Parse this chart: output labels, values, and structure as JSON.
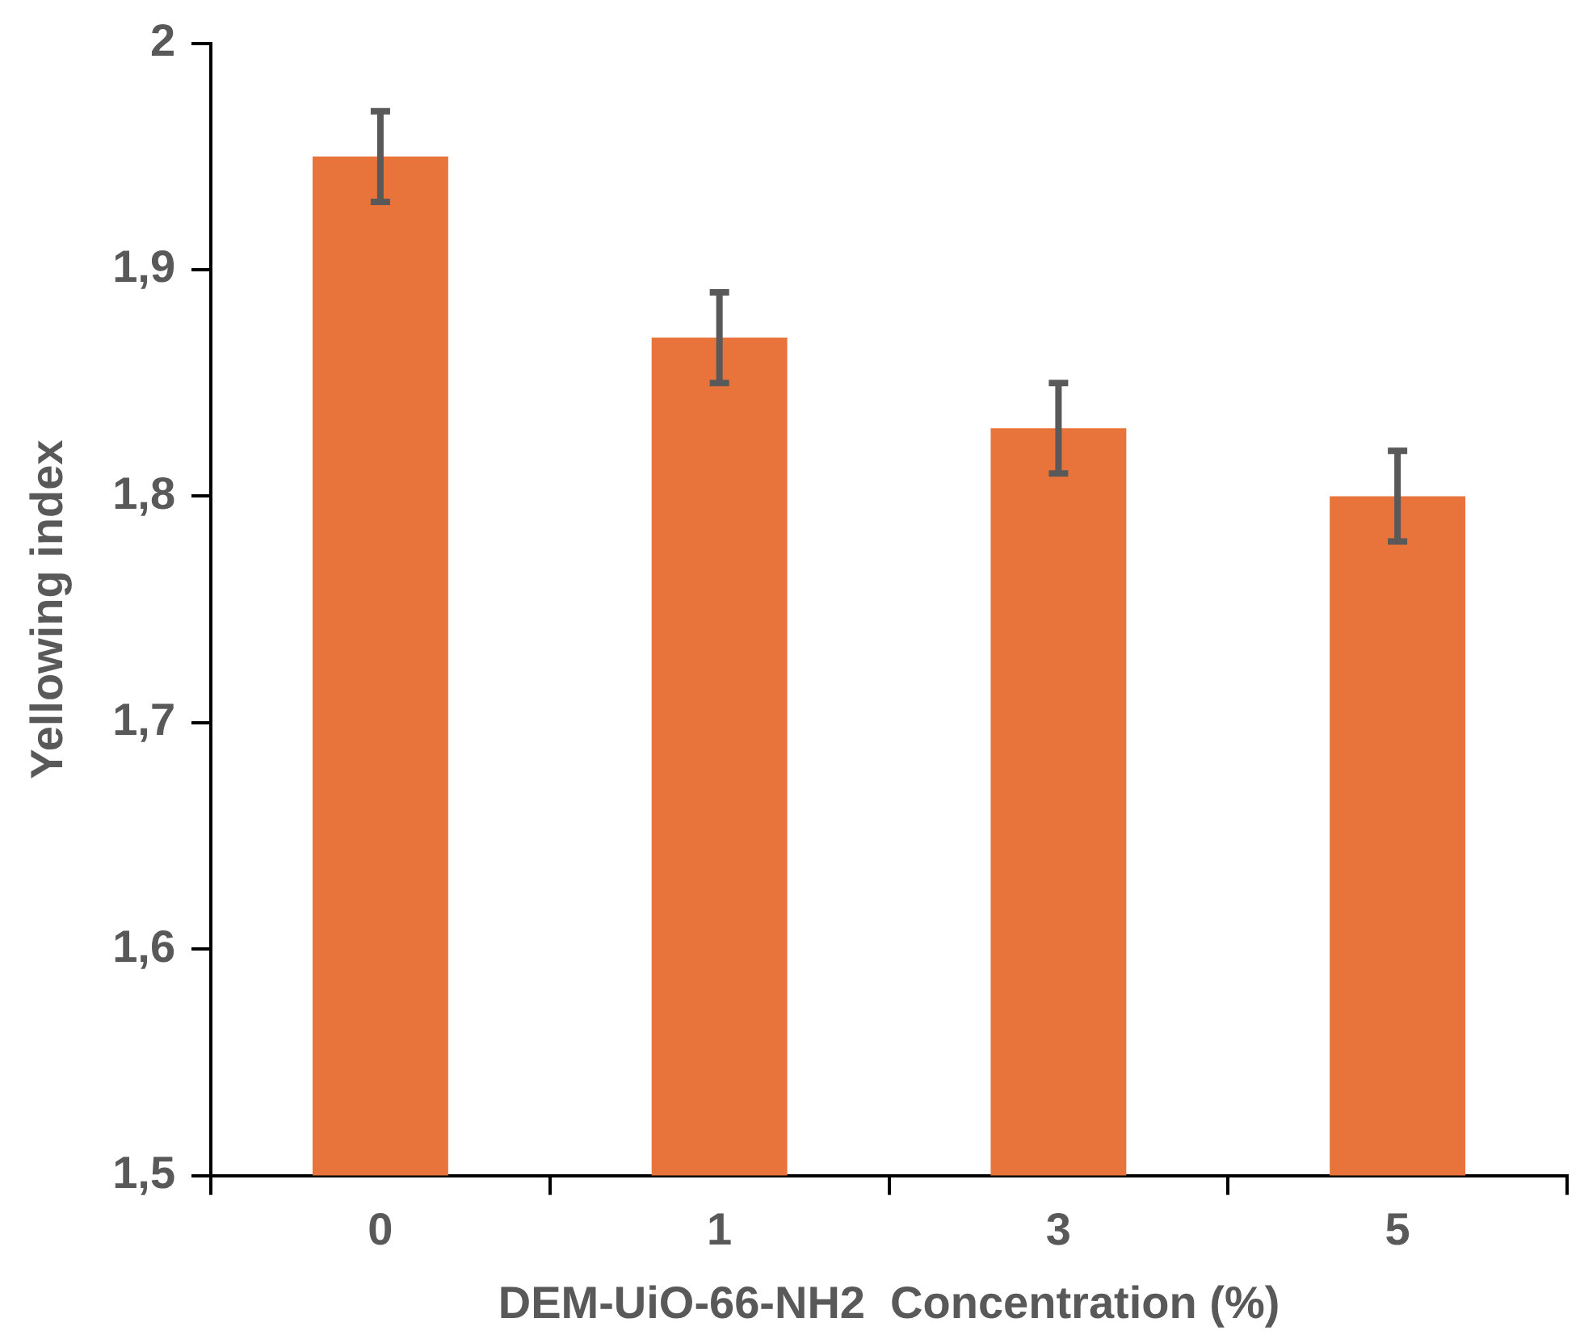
{
  "chart_data": {
    "type": "bar",
    "xlabel": "DEM-UiO-66-NH2  Concentration (%)",
    "ylabel": "Yellowing index",
    "categories": [
      "0",
      "1",
      "3",
      "5"
    ],
    "values": [
      1.95,
      1.87,
      1.83,
      1.8
    ],
    "errors": [
      0.02,
      0.02,
      0.02,
      0.02
    ],
    "color": "#e8743b",
    "ylim": [
      1.5,
      2
    ],
    "yticks": [
      {
        "value": 1.5,
        "label": "1,5"
      },
      {
        "value": 1.6,
        "label": "1,6"
      },
      {
        "value": 1.7,
        "label": "1,7"
      },
      {
        "value": 1.8,
        "label": "1,8"
      },
      {
        "value": 1.9,
        "label": "1,9"
      },
      {
        "value": 2,
        "label": "2"
      }
    ],
    "grid": false,
    "legend": false
  }
}
